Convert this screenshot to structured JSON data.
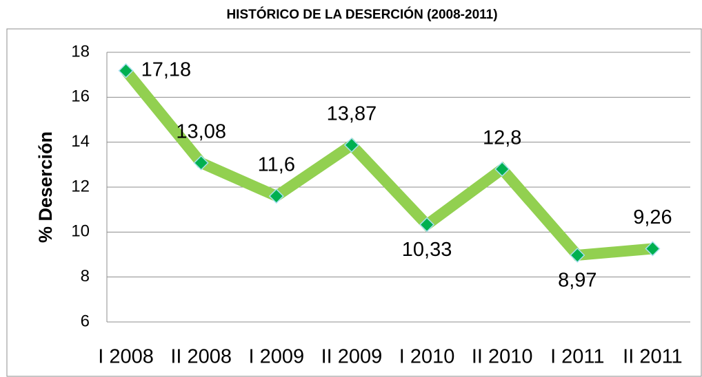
{
  "chart_data": {
    "type": "line",
    "title": "HISTÓRICO DE LA DESERCIÓN (2008-2011)",
    "y_label": "% Deserción",
    "categories": [
      "I 2008",
      "II 2008",
      "I 2009",
      "II 2009",
      "I 2010",
      "II 2010",
      "I 2011",
      "II 2011"
    ],
    "series": [
      {
        "name": "Deserción",
        "color": "#92d050",
        "marker_color": "#00b050",
        "values": [
          17.18,
          13.08,
          11.6,
          13.87,
          10.33,
          12.8,
          8.97,
          9.26
        ],
        "value_labels": [
          "17,18",
          "13,08",
          "11,6",
          "13,87",
          "10,33",
          "12,8",
          "8,97",
          "9,26"
        ]
      }
    ],
    "ylim": [
      6,
      18
    ],
    "yticks": [
      6,
      8,
      10,
      12,
      14,
      16,
      18
    ],
    "grid": true
  }
}
